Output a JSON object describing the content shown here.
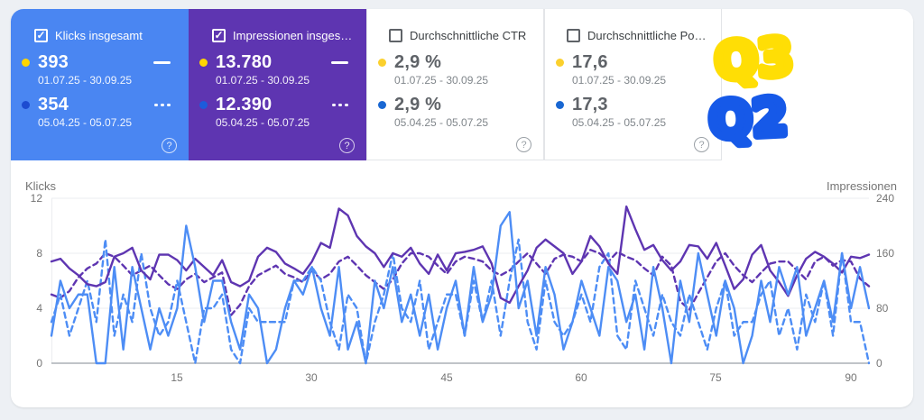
{
  "cards": [
    {
      "title": "Klicks insgesamt",
      "checked": true,
      "style": "blue",
      "help": "?",
      "rows": [
        {
          "dot_color": "#ffd600",
          "value": "393",
          "date_range": "01.07.25 - 30.09.25",
          "indicator": "solid"
        },
        {
          "dot_color": "#1d4cd0",
          "value": "354",
          "date_range": "05.04.25 - 05.07.25",
          "indicator": "dashed"
        }
      ]
    },
    {
      "title": "Impressionen insges…",
      "checked": true,
      "style": "purple",
      "help": "?",
      "rows": [
        {
          "dot_color": "#ffd600",
          "value": "13.780",
          "date_range": "01.07.25 - 30.09.25",
          "indicator": "solid"
        },
        {
          "dot_color": "#1d5bdb",
          "value": "12.390",
          "date_range": "05.04.25 - 05.07.25",
          "indicator": "dashed"
        }
      ]
    },
    {
      "title": "Durchschnittliche CTR",
      "checked": false,
      "style": "white",
      "help": "?",
      "rows": [
        {
          "dot_color": "#fbd02d",
          "value": "2,9 %",
          "date_range": "01.07.25 - 30.09.25",
          "indicator": "none"
        },
        {
          "dot_color": "#1967d2",
          "value": "2,9 %",
          "date_range": "05.04.25 - 05.07.25",
          "indicator": "none"
        }
      ]
    },
    {
      "title": "Durchschnittliche Po…",
      "checked": false,
      "style": "white",
      "help": "?",
      "rows": [
        {
          "dot_color": "#fbd02d",
          "value": "17,6",
          "date_range": "01.07.25 - 30.09.25",
          "indicator": "none"
        },
        {
          "dot_color": "#1967d2",
          "value": "17,3",
          "date_range": "05.04.25 - 05.07.25",
          "indicator": "none"
        }
      ]
    }
  ],
  "annotations": [
    {
      "text": "Q3",
      "color": "#ffde05"
    },
    {
      "text": "Q2",
      "color": "#1659e8"
    }
  ],
  "chart_data": {
    "type": "line",
    "x_range": [
      1,
      92
    ],
    "x_label_ticks": [
      15,
      30,
      45,
      60,
      75,
      90
    ],
    "left_axis": {
      "title": "Klicks",
      "ticks": [
        12,
        8,
        4,
        0
      ],
      "max": 12
    },
    "right_axis": {
      "title": "Impressionen",
      "ticks": [
        240,
        160,
        80,
        0
      ],
      "max": 240
    },
    "grid_values": [
      4,
      8,
      12
    ],
    "grid_color": "#ebedf0",
    "baseline_color": "#9aa0a6",
    "series": [
      {
        "name": "Impressionen 05.04.25 - 05.07.25",
        "axis": "right",
        "color": "#5e35b1",
        "dashed": true,
        "total": 12390,
        "values": [
          100,
          95,
          105,
          125,
          138,
          145,
          160,
          155,
          142,
          128,
          135,
          142,
          128,
          115,
          108,
          122,
          130,
          118,
          125,
          132,
          70,
          85,
          112,
          128,
          135,
          142,
          130,
          125,
          118,
          135,
          122,
          130,
          148,
          155,
          142,
          128,
          118,
          108,
          122,
          145,
          160,
          160,
          155,
          142,
          130,
          148,
          155,
          152,
          148,
          135,
          128,
          135,
          148,
          160,
          145,
          130,
          152,
          158,
          155,
          148,
          165,
          160,
          148,
          162,
          155,
          150,
          138,
          128,
          155,
          142,
          90,
          78,
          102,
          125,
          148,
          160,
          142,
          128,
          118,
          132,
          145,
          148,
          148,
          135,
          122,
          148,
          155,
          142,
          150,
          148,
          123,
          112
        ]
      },
      {
        "name": "Klicks 05.04.25 - 05.07.25",
        "axis": "left",
        "color": "#4d8df5",
        "dashed": true,
        "total": 354,
        "values": [
          3,
          5,
          2,
          4,
          6,
          3,
          9,
          2,
          5,
          3,
          8,
          4,
          2,
          3,
          6,
          3,
          0,
          4,
          4,
          5,
          1,
          0,
          4,
          3,
          3,
          3,
          3,
          6,
          6,
          7,
          6,
          3,
          1,
          5,
          4,
          0,
          3,
          5,
          8,
          4,
          3,
          6,
          1,
          3,
          5,
          5,
          2,
          6,
          3,
          6,
          2,
          6,
          9,
          3,
          1,
          6,
          3,
          2,
          3,
          5,
          3,
          7,
          8,
          2,
          1,
          6,
          4,
          2,
          5,
          3,
          2,
          5,
          3,
          1,
          4,
          6,
          2,
          3,
          3,
          5,
          6,
          2,
          4,
          1,
          5,
          3,
          6,
          2,
          8,
          3,
          3,
          0
        ]
      },
      {
        "name": "Impressionen 01.07.25 - 30.09.25",
        "axis": "right",
        "color": "#5e35b1",
        "dashed": false,
        "total": 13780,
        "values": [
          148,
          152,
          138,
          128,
          115,
          112,
          118,
          155,
          160,
          168,
          135,
          122,
          158,
          158,
          150,
          135,
          152,
          140,
          128,
          150,
          118,
          112,
          120,
          155,
          168,
          162,
          145,
          138,
          130,
          148,
          175,
          168,
          225,
          215,
          185,
          170,
          160,
          140,
          160,
          155,
          168,
          145,
          130,
          158,
          135,
          160,
          162,
          165,
          170,
          145,
          95,
          88,
          112,
          135,
          168,
          180,
          170,
          160,
          130,
          148,
          185,
          170,
          145,
          130,
          228,
          195,
          165,
          172,
          150,
          135,
          148,
          172,
          170,
          152,
          175,
          142,
          108,
          122,
          158,
          172,
          135,
          118,
          98,
          128,
          152,
          162,
          155,
          145,
          132,
          155,
          153,
          158
        ]
      },
      {
        "name": "Klicks 01.07.25 - 30.09.25",
        "axis": "left",
        "color": "#4d8df5",
        "dashed": false,
        "total": 393,
        "values": [
          2,
          6,
          4,
          5,
          5,
          0,
          0,
          7,
          1,
          7,
          4,
          1,
          4,
          2,
          4,
          10,
          7,
          3,
          6,
          6,
          3,
          1,
          5,
          4,
          0,
          1,
          4,
          6,
          5,
          7,
          4,
          2,
          7,
          1,
          3,
          0,
          6,
          4,
          7,
          3,
          5,
          2,
          5,
          1,
          4,
          6,
          2,
          7,
          3,
          5,
          10,
          11,
          4,
          6,
          2,
          7,
          5,
          1,
          3,
          6,
          4,
          2,
          7,
          6,
          3,
          5,
          1,
          7,
          4,
          0,
          6,
          3,
          8,
          5,
          2,
          6,
          4,
          0,
          2,
          6,
          3,
          7,
          5,
          7,
          2,
          4,
          6,
          3,
          8,
          4,
          7,
          4
        ]
      }
    ]
  }
}
